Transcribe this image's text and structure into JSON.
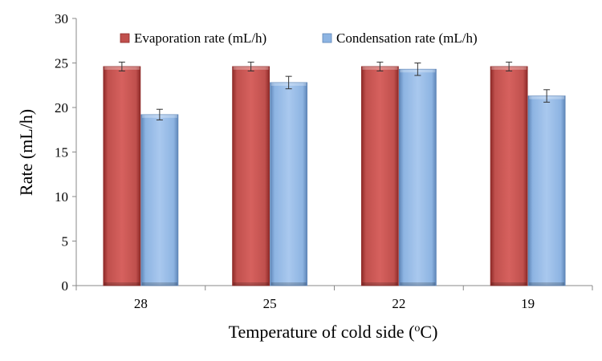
{
  "chart_data": {
    "type": "bar",
    "categories": [
      "28",
      "25",
      "22",
      "19"
    ],
    "series": [
      {
        "name": "Evaporation rate (mL/h)",
        "values": [
          24.6,
          24.6,
          24.6,
          24.6
        ],
        "errors": [
          0.5,
          0.5,
          0.5,
          0.5
        ],
        "color": "#c0504d"
      },
      {
        "name": "Condensation rate (mL/h)",
        "values": [
          19.2,
          22.8,
          24.3,
          21.3
        ],
        "errors": [
          0.6,
          0.7,
          0.7,
          0.7
        ],
        "color": "#8db4e2"
      }
    ],
    "ylabel": "Rate (mL/h)",
    "xlabel_main": "Temperature of cold side (",
    "xlabel_sup": "o",
    "xlabel_end": "C)",
    "ylim": [
      0,
      30
    ],
    "yticks": [
      0,
      5,
      10,
      15,
      20,
      25,
      30
    ],
    "grid": false,
    "legend_position": "top"
  }
}
